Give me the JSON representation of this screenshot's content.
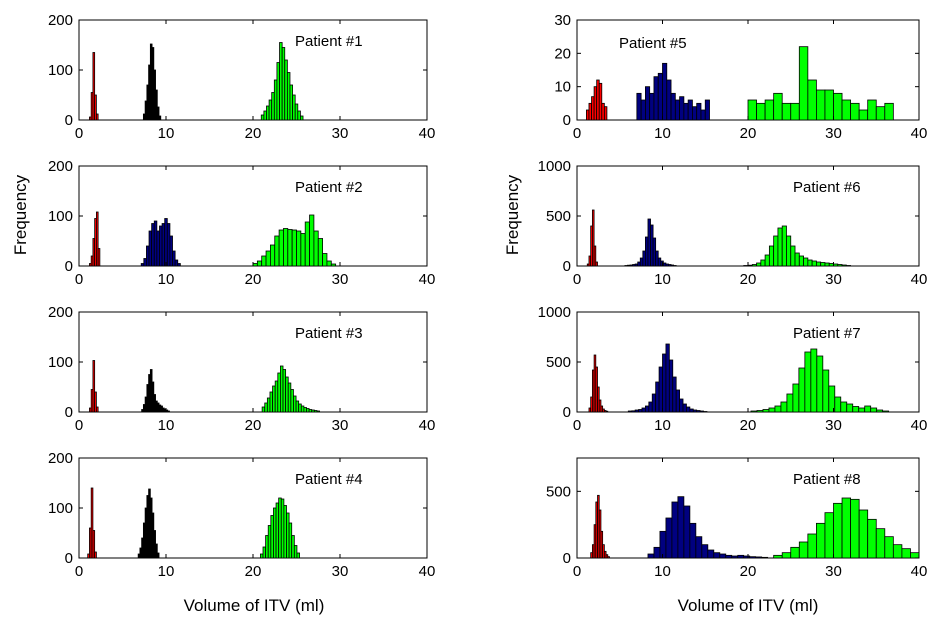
{
  "figure": {
    "ylabel_left": "Frequency",
    "ylabel_right": "Frequency",
    "xlabel_left": "Volume of ITV (ml)",
    "xlabel_right": "Volume of ITV (ml)"
  },
  "chart_data": [
    {
      "type": "bar",
      "title": "Patient #1",
      "xlim": [
        0,
        40
      ],
      "xticks": [
        0,
        10,
        20,
        30,
        40
      ],
      "ylim": [
        0,
        200
      ],
      "yticks": [
        0,
        100,
        200
      ],
      "series": [
        {
          "color": "#ff0000",
          "bin_width": 0.2,
          "x": [
            1.3,
            1.5,
            1.7,
            1.9,
            2.1
          ],
          "values": [
            6,
            55,
            135,
            50,
            12
          ]
        },
        {
          "color": "#000000",
          "bin_width": 0.2,
          "x": [
            7.5,
            7.7,
            7.9,
            8.1,
            8.3,
            8.5,
            8.7,
            8.9,
            9.1,
            9.3
          ],
          "values": [
            12,
            38,
            70,
            110,
            152,
            145,
            100,
            60,
            26,
            8
          ]
        },
        {
          "color": "#00ff00",
          "bin_width": 0.3,
          "x": [
            21.1,
            21.4,
            21.7,
            22.0,
            22.3,
            22.6,
            22.9,
            23.2,
            23.5,
            23.8,
            24.1,
            24.4,
            24.7,
            25.0,
            25.3,
            25.6
          ],
          "values": [
            10,
            18,
            28,
            40,
            55,
            80,
            115,
            155,
            145,
            120,
            95,
            70,
            50,
            32,
            18,
            8
          ]
        }
      ]
    },
    {
      "type": "bar",
      "title": "Patient #2",
      "xlim": [
        0,
        40
      ],
      "xticks": [
        0,
        10,
        20,
        30,
        40
      ],
      "ylim": [
        0,
        200
      ],
      "yticks": [
        0,
        100,
        200
      ],
      "series": [
        {
          "color": "#ff0000",
          "bin_width": 0.2,
          "x": [
            1.3,
            1.5,
            1.7,
            1.9,
            2.1,
            2.3
          ],
          "values": [
            5,
            20,
            55,
            95,
            108,
            35
          ]
        },
        {
          "color": "#000080",
          "bin_width": 0.3,
          "x": [
            7.3,
            7.6,
            7.9,
            8.2,
            8.5,
            8.8,
            9.1,
            9.4,
            9.7,
            10.0,
            10.3,
            10.6,
            10.9,
            11.2,
            11.5
          ],
          "values": [
            5,
            15,
            40,
            70,
            85,
            90,
            70,
            80,
            85,
            95,
            85,
            60,
            30,
            12,
            5
          ]
        },
        {
          "color": "#00ff00",
          "bin_width": 0.5,
          "x": [
            20.25,
            20.75,
            21.25,
            21.75,
            22.25,
            22.75,
            23.25,
            23.75,
            24.25,
            24.75,
            25.25,
            25.75,
            26.25,
            26.75,
            27.25,
            27.75,
            28.25,
            28.75,
            29.25
          ],
          "values": [
            5,
            10,
            20,
            30,
            42,
            60,
            72,
            75,
            73,
            72,
            70,
            65,
            88,
            102,
            70,
            55,
            25,
            10,
            4
          ]
        }
      ]
    },
    {
      "type": "bar",
      "title": "Patient #3",
      "xlim": [
        0,
        40
      ],
      "xticks": [
        0,
        10,
        20,
        30,
        40
      ],
      "ylim": [
        0,
        200
      ],
      "yticks": [
        0,
        100,
        200
      ],
      "series": [
        {
          "color": "#ff0000",
          "bin_width": 0.2,
          "x": [
            1.3,
            1.5,
            1.7,
            1.9,
            2.1
          ],
          "values": [
            8,
            45,
            103,
            40,
            10
          ]
        },
        {
          "color": "#000000",
          "bin_width": 0.2,
          "x": [
            7.3,
            7.5,
            7.7,
            7.9,
            8.1,
            8.3,
            8.5,
            8.7,
            8.9,
            9.1,
            9.3,
            9.5,
            9.7,
            9.9,
            10.1,
            10.3
          ],
          "values": [
            5,
            15,
            30,
            55,
            75,
            85,
            60,
            35,
            22,
            18,
            14,
            12,
            8,
            6,
            4,
            2
          ]
        },
        {
          "color": "#00ff00",
          "bin_width": 0.3,
          "x": [
            21.2,
            21.5,
            21.8,
            22.1,
            22.4,
            22.7,
            23.0,
            23.3,
            23.6,
            23.9,
            24.2,
            24.5,
            24.8,
            25.1,
            25.4,
            25.7,
            26.0,
            26.3,
            26.6,
            26.9,
            27.2,
            27.5
          ],
          "values": [
            10,
            18,
            28,
            40,
            52,
            62,
            78,
            92,
            85,
            70,
            58,
            45,
            32,
            22,
            16,
            12,
            9,
            7,
            5,
            4,
            3,
            2
          ]
        }
      ]
    },
    {
      "type": "bar",
      "title": "Patient #4",
      "xlim": [
        0,
        40
      ],
      "xticks": [
        0,
        10,
        20,
        30,
        40
      ],
      "ylim": [
        0,
        200
      ],
      "yticks": [
        0,
        100,
        200
      ],
      "series": [
        {
          "color": "#ff0000",
          "bin_width": 0.2,
          "x": [
            1.1,
            1.3,
            1.5,
            1.7,
            1.9
          ],
          "values": [
            8,
            60,
            140,
            55,
            12
          ]
        },
        {
          "color": "#000000",
          "bin_width": 0.2,
          "x": [
            6.9,
            7.1,
            7.3,
            7.5,
            7.7,
            7.9,
            8.1,
            8.3,
            8.5,
            8.7,
            8.9,
            9.1
          ],
          "values": [
            8,
            20,
            40,
            70,
            100,
            125,
            138,
            120,
            90,
            55,
            28,
            10
          ]
        },
        {
          "color": "#00ff00",
          "bin_width": 0.3,
          "x": [
            21.0,
            21.3,
            21.6,
            21.9,
            22.2,
            22.5,
            22.8,
            23.1,
            23.4,
            23.7,
            24.0,
            24.3,
            24.6,
            24.9,
            25.2
          ],
          "values": [
            8,
            22,
            45,
            65,
            85,
            100,
            110,
            120,
            118,
            105,
            90,
            70,
            45,
            25,
            10
          ]
        }
      ]
    },
    {
      "type": "bar",
      "title": "Patient #5",
      "xlim": [
        0,
        40
      ],
      "xticks": [
        0,
        10,
        20,
        30,
        40
      ],
      "ylim": [
        0,
        30
      ],
      "yticks": [
        0,
        10,
        20,
        30
      ],
      "series": [
        {
          "color": "#ff0000",
          "bin_width": 0.3,
          "x": [
            1.25,
            1.55,
            1.85,
            2.15,
            2.45,
            2.75,
            3.05,
            3.35
          ],
          "values": [
            3,
            5,
            7,
            10,
            12,
            11,
            5,
            4
          ]
        },
        {
          "color": "#000080",
          "bin_width": 0.5,
          "x": [
            7.25,
            7.75,
            8.25,
            8.75,
            9.25,
            9.75,
            10.25,
            10.75,
            11.25,
            11.75,
            12.25,
            12.75,
            13.25,
            13.75,
            14.25,
            14.75,
            15.25
          ],
          "values": [
            8,
            6,
            10,
            8,
            13,
            14,
            17,
            12,
            8,
            6,
            7,
            5,
            6,
            4,
            5,
            3,
            6
          ]
        },
        {
          "color": "#00ff00",
          "bin_width": 1.0,
          "x": [
            20.5,
            21.5,
            22.5,
            23.5,
            24.5,
            25.5,
            26.5,
            27.5,
            28.5,
            29.5,
            30.5,
            31.5,
            32.5,
            33.5,
            34.5,
            35.5,
            36.5
          ],
          "values": [
            6,
            5,
            6,
            8,
            5,
            5,
            22,
            12,
            9,
            9,
            8,
            6,
            5,
            3,
            6,
            4,
            5
          ]
        }
      ]
    },
    {
      "type": "bar",
      "title": "Patient #6",
      "xlim": [
        0,
        40
      ],
      "xticks": [
        0,
        10,
        20,
        30,
        40
      ],
      "ylim": [
        0,
        1000
      ],
      "yticks": [
        0,
        500,
        1000
      ],
      "series": [
        {
          "color": "#ff0000",
          "bin_width": 0.2,
          "x": [
            1.3,
            1.5,
            1.7,
            1.9,
            2.1,
            2.3
          ],
          "values": [
            20,
            100,
            400,
            560,
            200,
            40
          ]
        },
        {
          "color": "#000080",
          "bin_width": 0.3,
          "x": [
            5.75,
            6.05,
            6.35,
            6.65,
            6.95,
            7.25,
            7.55,
            7.85,
            8.15,
            8.45,
            8.75,
            9.05,
            9.35,
            9.65,
            9.95,
            10.25,
            10.55,
            10.85,
            11.15,
            11.45
          ],
          "values": [
            5,
            8,
            10,
            15,
            20,
            40,
            80,
            150,
            290,
            470,
            410,
            280,
            150,
            80,
            50,
            30,
            20,
            15,
            10,
            5
          ]
        },
        {
          "color": "#00ff00",
          "bin_width": 0.5,
          "x": [
            19.75,
            20.25,
            20.75,
            21.25,
            21.75,
            22.25,
            22.75,
            23.25,
            23.75,
            24.25,
            24.75,
            25.25,
            25.75,
            26.25,
            26.75,
            27.25,
            27.75,
            28.25,
            28.75,
            29.25,
            29.75,
            30.25,
            30.75,
            31.25,
            31.75
          ],
          "values": [
            5,
            8,
            15,
            30,
            60,
            110,
            200,
            300,
            380,
            400,
            300,
            200,
            130,
            100,
            80,
            60,
            50,
            40,
            35,
            30,
            25,
            20,
            15,
            10,
            5
          ]
        }
      ]
    },
    {
      "type": "bar",
      "title": "Patient #7",
      "xlim": [
        0,
        40
      ],
      "xticks": [
        0,
        10,
        20,
        30,
        40
      ],
      "ylim": [
        0,
        1000
      ],
      "yticks": [
        0,
        500,
        1000
      ],
      "series": [
        {
          "color": "#ff0000",
          "bin_width": 0.2,
          "x": [
            1.5,
            1.7,
            1.9,
            2.1,
            2.3,
            2.5,
            2.7,
            2.9,
            3.1,
            3.3,
            3.5
          ],
          "values": [
            40,
            150,
            420,
            570,
            450,
            250,
            120,
            60,
            30,
            15,
            8
          ]
        },
        {
          "color": "#000080",
          "bin_width": 0.4,
          "x": [
            6.2,
            6.6,
            7.0,
            7.4,
            7.8,
            8.2,
            8.6,
            9.0,
            9.4,
            9.8,
            10.2,
            10.6,
            11.0,
            11.4,
            11.8,
            12.2,
            12.6,
            13.0,
            13.4,
            13.8,
            14.2,
            14.6,
            15.0
          ],
          "values": [
            10,
            12,
            20,
            25,
            40,
            60,
            100,
            180,
            300,
            450,
            580,
            680,
            520,
            350,
            220,
            130,
            80,
            50,
            30,
            20,
            15,
            10,
            5
          ]
        },
        {
          "color": "#00ff00",
          "bin_width": 0.7,
          "x": [
            20.7,
            21.4,
            22.1,
            22.8,
            23.5,
            24.2,
            24.9,
            25.6,
            26.3,
            27.0,
            27.7,
            28.4,
            29.1,
            29.8,
            30.5,
            31.2,
            31.9,
            32.6,
            33.3,
            34.0,
            34.7,
            35.4,
            36.1
          ],
          "values": [
            10,
            15,
            25,
            40,
            60,
            100,
            180,
            280,
            440,
            600,
            630,
            560,
            420,
            260,
            150,
            100,
            80,
            55,
            40,
            60,
            40,
            20,
            10
          ]
        }
      ]
    },
    {
      "type": "bar",
      "title": "Patient #8",
      "xlim": [
        0,
        40
      ],
      "xticks": [
        0,
        10,
        20,
        30,
        40
      ],
      "ylim": [
        0,
        750
      ],
      "yticks": [
        0,
        500
      ],
      "series": [
        {
          "color": "#ff0000",
          "bin_width": 0.2,
          "x": [
            1.7,
            1.9,
            2.1,
            2.3,
            2.5,
            2.7,
            2.9,
            3.1,
            3.3,
            3.5,
            3.7
          ],
          "values": [
            40,
            100,
            250,
            420,
            470,
            360,
            200,
            100,
            50,
            25,
            10
          ]
        },
        {
          "color": "#000080",
          "bin_width": 0.7,
          "x": [
            8.65,
            9.35,
            10.05,
            10.75,
            11.45,
            12.15,
            12.85,
            13.55,
            14.25,
            14.95,
            15.65,
            16.35,
            17.05,
            17.75,
            18.45,
            19.15,
            19.85,
            20.55,
            21.25,
            21.95
          ],
          "values": [
            30,
            80,
            200,
            300,
            420,
            460,
            390,
            260,
            160,
            100,
            60,
            40,
            30,
            20,
            15,
            20,
            15,
            10,
            8,
            5
          ]
        },
        {
          "color": "#00ff00",
          "bin_width": 1.0,
          "x": [
            23.5,
            24.5,
            25.5,
            26.5,
            27.5,
            28.5,
            29.5,
            30.5,
            31.5,
            32.5,
            33.5,
            34.5,
            35.5,
            36.5,
            37.5,
            38.5,
            39.5
          ],
          "values": [
            20,
            40,
            80,
            120,
            180,
            260,
            340,
            410,
            450,
            440,
            360,
            290,
            220,
            160,
            100,
            70,
            40
          ]
        }
      ]
    }
  ]
}
